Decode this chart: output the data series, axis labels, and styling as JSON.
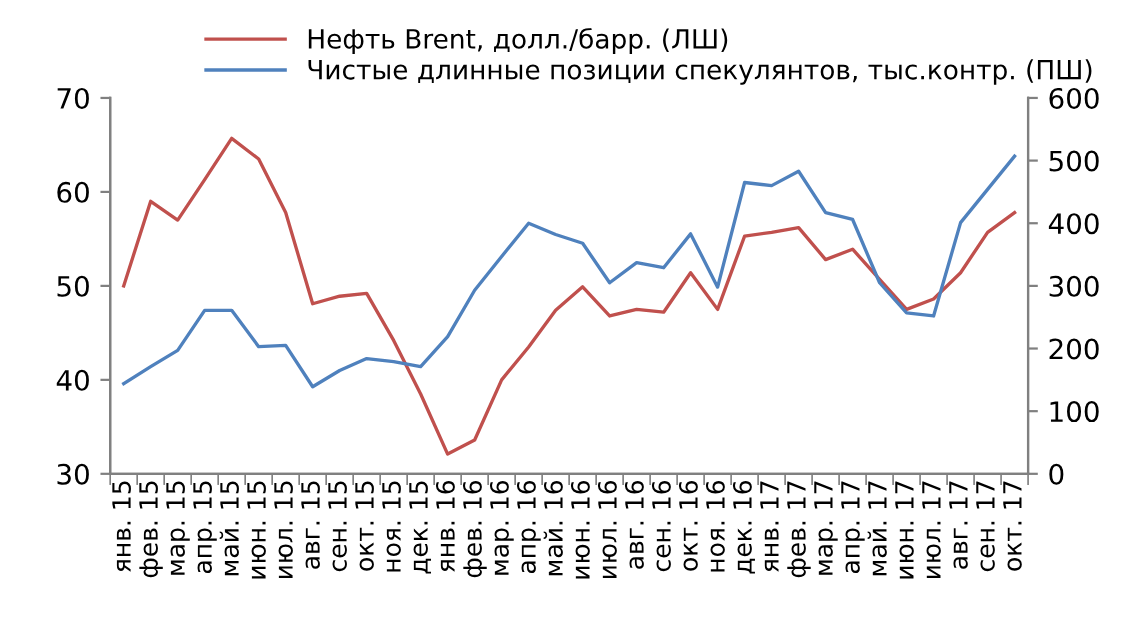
{
  "chart_data": {
    "type": "line",
    "categories": [
      "янв. 15",
      "фев. 15",
      "мар. 15",
      "апр. 15",
      "май. 15",
      "июн. 15",
      "июл. 15",
      "авг. 15",
      "сен. 15",
      "окт. 15",
      "ноя. 15",
      "дек. 15",
      "янв. 16",
      "фев. 16",
      "мар. 16",
      "апр. 16",
      "май. 16",
      "июн. 16",
      "июл. 16",
      "авг. 16",
      "сен. 16",
      "окт. 16",
      "ноя. 16",
      "дек. 16",
      "янв. 17",
      "фев. 17",
      "мар. 17",
      "апр. 17",
      "май. 17",
      "июн. 17",
      "июл. 17",
      "авг. 17",
      "сен. 17",
      "окт. 17"
    ],
    "series": [
      {
        "name": "Нефть Brent, долл./барр. (ЛШ)",
        "color": "#c0504d",
        "values": [
          50,
          59,
          57,
          61.3,
          65.7,
          63.5,
          57.8,
          48.1,
          48.9,
          49.2,
          44.2,
          38.5,
          32.1,
          33.6,
          40,
          43.5,
          47.4,
          49.9,
          46.8,
          47.5,
          47.2,
          51.4,
          47.5,
          55.3,
          55.7,
          56.2,
          52.8,
          53.9,
          50.7,
          47.5,
          48.6,
          51.4,
          55.7,
          57.8
        ]
      },
      {
        "name": "Чистые длинные позиции спекулянтов, тыс.контр. (ПШ)",
        "color": "#4f81bd",
        "axis": "y2",
        "values": [
          144,
          171,
          197,
          261,
          261,
          203,
          205,
          139,
          165,
          184,
          179,
          171,
          219,
          293,
          347,
          400,
          382,
          368,
          305,
          337,
          329,
          383,
          298,
          465,
          460,
          483,
          417,
          406,
          305,
          257,
          252,
          401,
          454,
          507
        ]
      }
    ],
    "ylim": [
      30,
      70
    ],
    "yticks": [
      30,
      40,
      50,
      60,
      70
    ],
    "y2lim": [
      0,
      600
    ],
    "y2ticks": [
      0,
      100,
      200,
      300,
      400,
      500,
      600
    ],
    "legend": "top",
    "grid": false,
    "marker": "none",
    "line_style": "solid"
  }
}
